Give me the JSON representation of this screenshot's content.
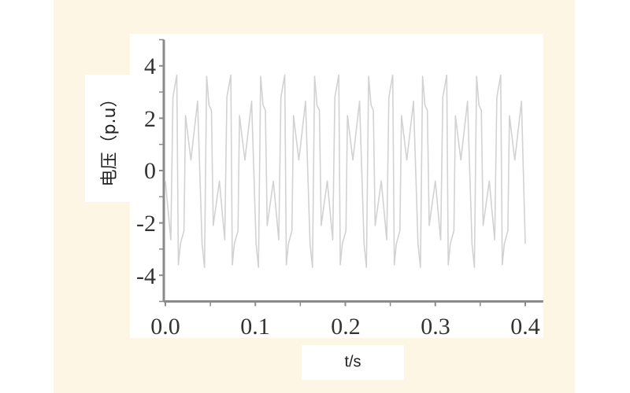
{
  "chart_data": {
    "type": "line",
    "title": "",
    "xlabel": "t/s",
    "ylabel": "电压（p.u）",
    "xlim": [
      0.0,
      0.42
    ],
    "ylim": [
      -5,
      5
    ],
    "grid": false,
    "x_ticks": [
      "0.0",
      "0.1",
      "0.2",
      "0.3",
      "0.4"
    ],
    "y_ticks": [
      "4",
      "2",
      "0",
      "-2",
      "-4"
    ],
    "colors": {
      "line": "#d2d2d2",
      "axis": "#8a8a8a",
      "background": "#fdf6e5"
    },
    "series": [
      {
        "x": [
          0,
          0.006,
          0.0084,
          0.0127,
          0.0144,
          0.0167,
          0.0207,
          0.0224,
          0.0284,
          0.0358,
          0.0408,
          0.0435,
          0.0459,
          0.0485,
          0.0512,
          0.0532,
          0.06,
          0.066,
          0.0684,
          0.0727,
          0.0744,
          0.0767,
          0.0807,
          0.0824,
          0.0884,
          0.0958,
          0.1008,
          0.1035,
          0.1059,
          0.1085,
          0.1112,
          0.1132,
          0.12,
          0.126,
          0.1284,
          0.1327,
          0.1344,
          0.1367,
          0.1407,
          0.1424,
          0.1484,
          0.1558,
          0.1608,
          0.1635,
          0.1659,
          0.1685,
          0.1712,
          0.1732,
          0.18,
          0.186,
          0.1884,
          0.1927,
          0.1944,
          0.1967,
          0.2007,
          0.2024,
          0.2084,
          0.2158,
          0.2208,
          0.2235,
          0.2259,
          0.2285,
          0.2312,
          0.2332,
          0.24,
          0.246,
          0.2484,
          0.2527,
          0.2544,
          0.2567,
          0.2607,
          0.2624,
          0.2684,
          0.2758,
          0.2808,
          0.2835,
          0.2859,
          0.2885,
          0.2912,
          0.2932,
          0.3,
          0.306,
          0.3084,
          0.3127,
          0.3144,
          0.3167,
          0.3207,
          0.3224,
          0.3284,
          0.3358,
          0.3408,
          0.3435,
          0.3459,
          0.3485,
          0.3512,
          0.3532,
          0.36,
          0.366,
          0.3684,
          0.3727,
          0.3744,
          0.3767,
          0.3807,
          0.3824,
          0.3884,
          0.3958,
          0.4
        ],
        "y": [
          -0.4,
          -2.65,
          2.8,
          3.65,
          -3.6,
          -2.8,
          -2.3,
          2.1,
          0.4,
          2.65,
          -2.8,
          -3.7,
          3.6,
          2.5,
          2.3,
          -2.1,
          -0.4,
          -2.65,
          2.8,
          3.65,
          -3.6,
          -2.8,
          -2.3,
          2.1,
          0.4,
          2.65,
          -2.8,
          -3.7,
          3.6,
          2.5,
          2.3,
          -2.1,
          -0.4,
          -2.65,
          2.8,
          3.65,
          -3.6,
          -2.8,
          -2.3,
          2.1,
          0.4,
          2.65,
          -2.8,
          -3.7,
          3.6,
          2.5,
          2.3,
          -2.1,
          -0.4,
          -2.65,
          2.8,
          3.65,
          -3.6,
          -2.8,
          -2.3,
          2.1,
          0.4,
          2.65,
          -2.8,
          -3.7,
          3.6,
          2.5,
          2.3,
          -2.1,
          -0.4,
          -2.65,
          2.8,
          3.65,
          -3.6,
          -2.8,
          -2.3,
          2.1,
          0.4,
          2.65,
          -2.8,
          -3.7,
          3.6,
          2.5,
          2.3,
          -2.1,
          -0.4,
          -2.65,
          2.8,
          3.65,
          -3.6,
          -2.8,
          -2.3,
          2.1,
          0.4,
          2.65,
          -2.8,
          -3.7,
          3.6,
          2.5,
          2.3,
          -2.1,
          -0.4,
          -2.65,
          2.8,
          3.65,
          -3.6,
          -2.8,
          -2.3,
          2.1,
          0.4,
          2.65,
          -2.8
        ]
      }
    ]
  }
}
